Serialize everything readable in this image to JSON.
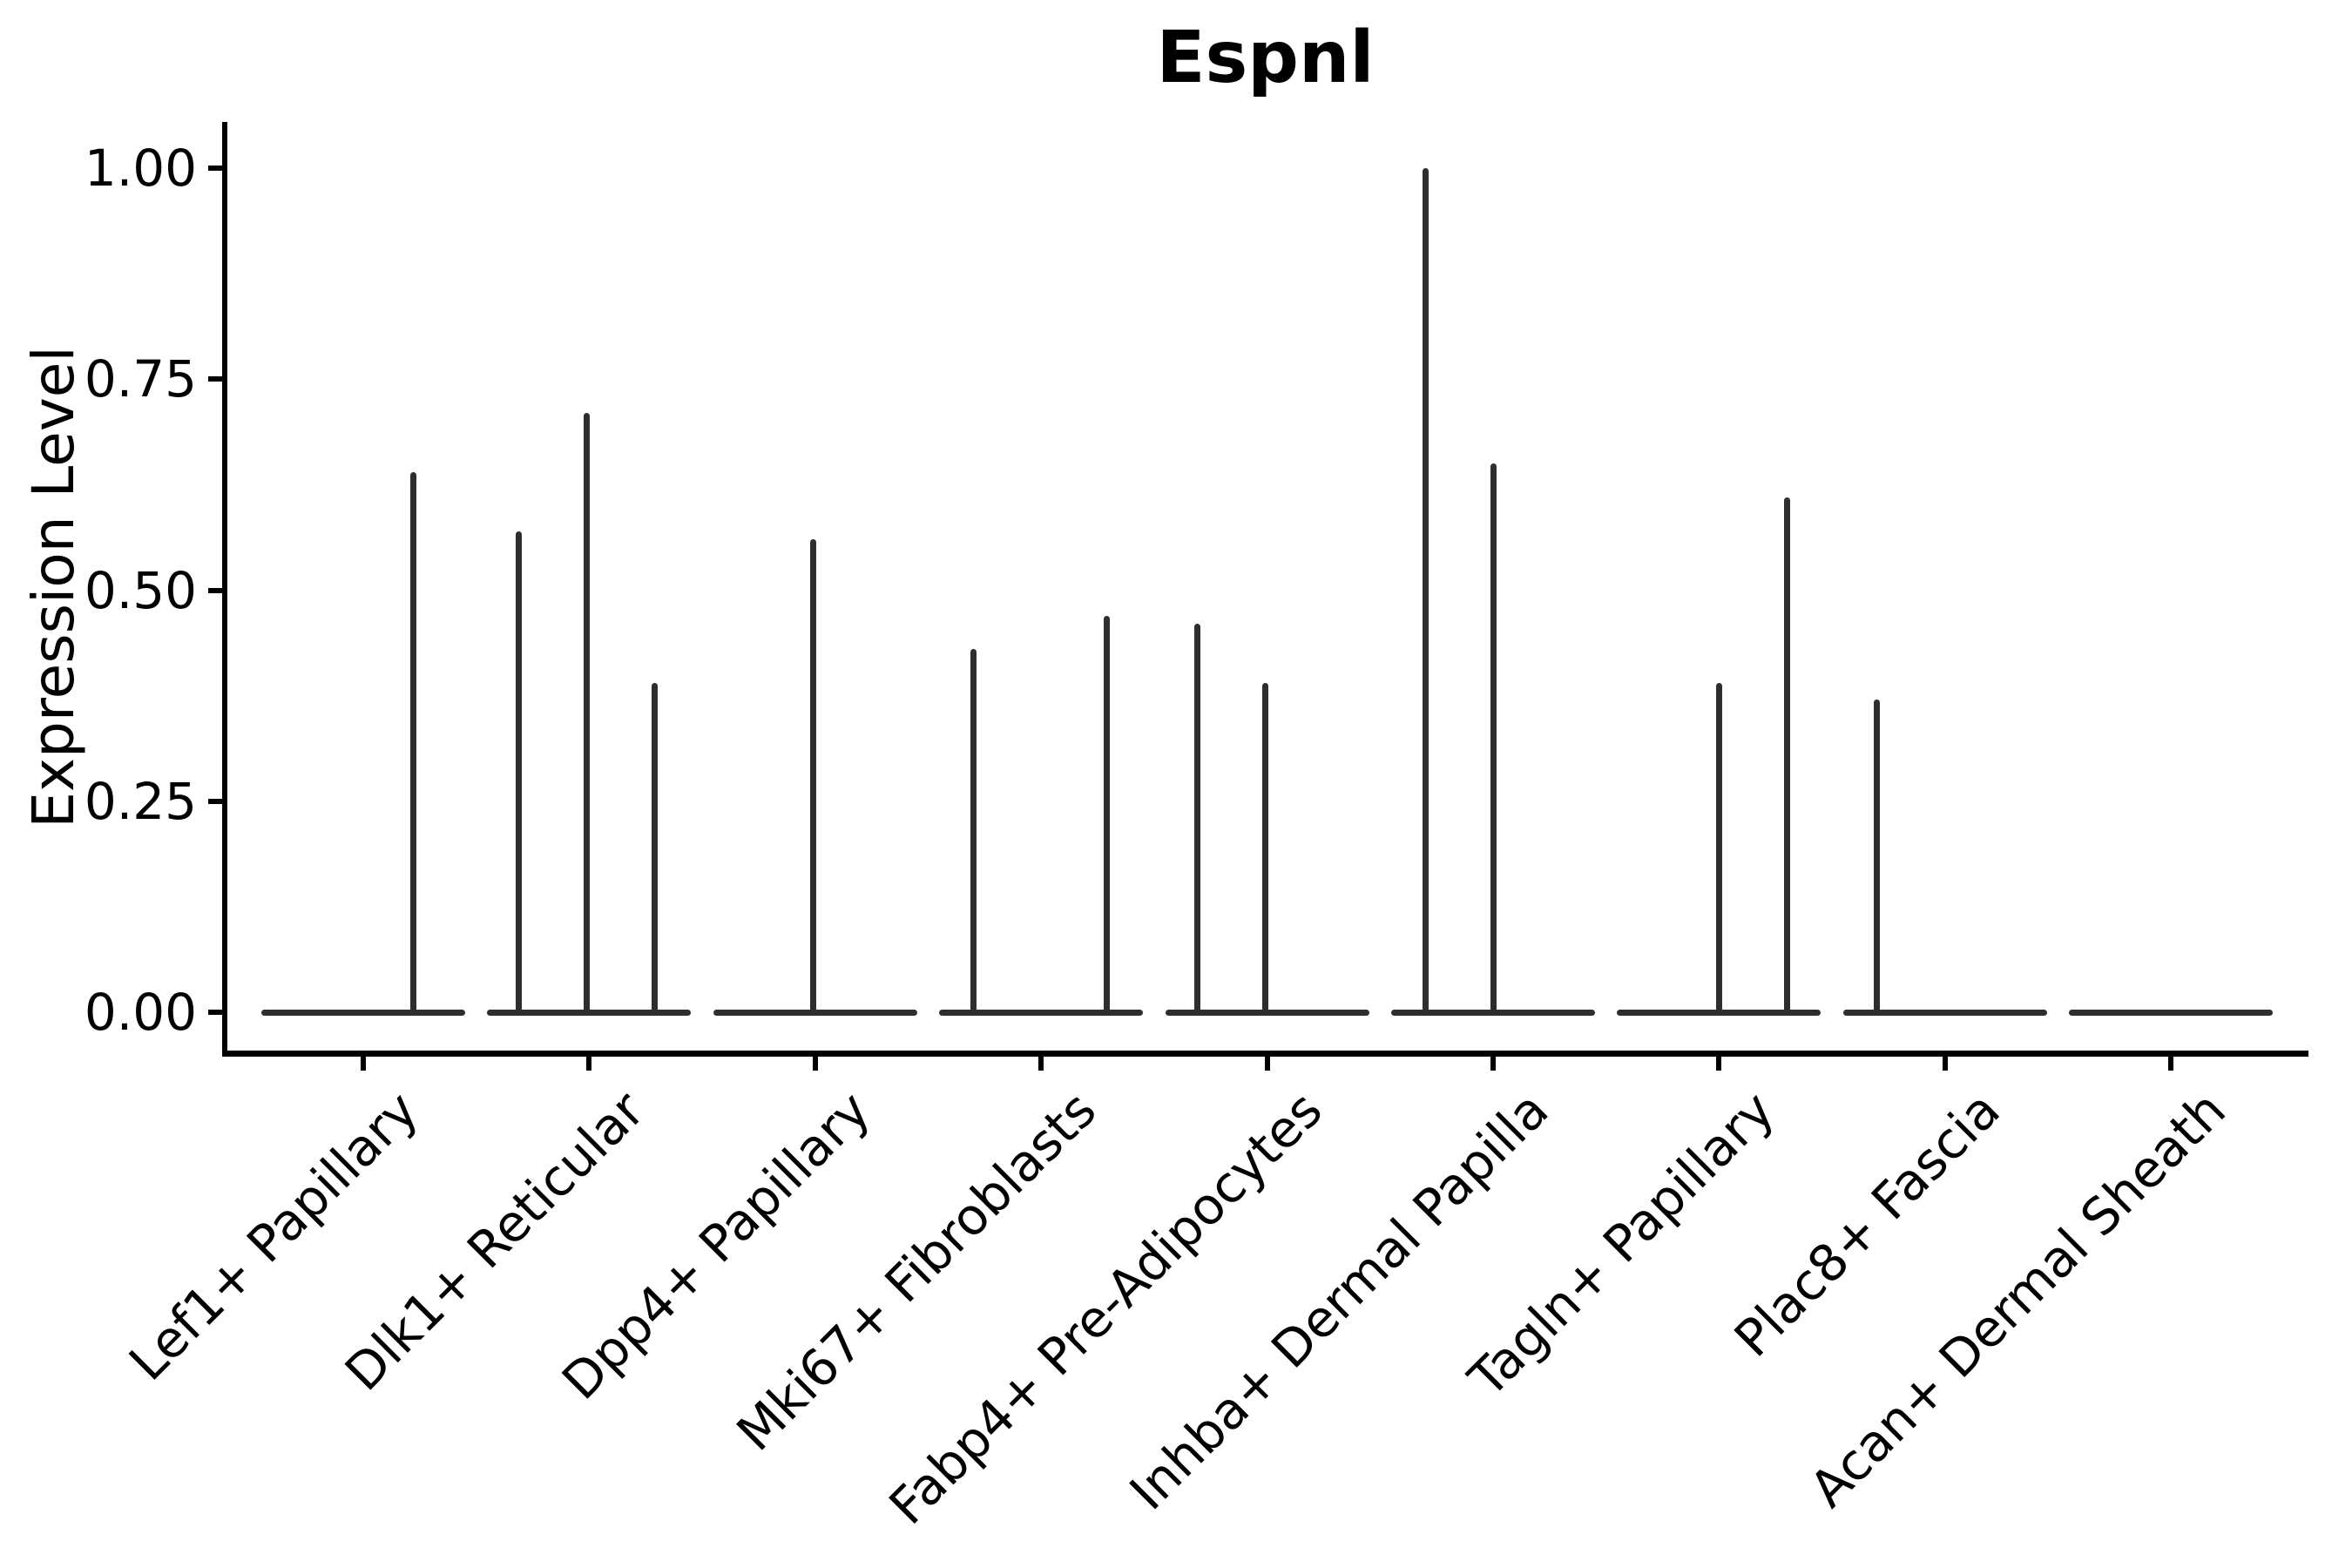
{
  "chart_data": {
    "type": "violin",
    "title": "Espnl",
    "xlabel": "",
    "ylabel": "Expression Level",
    "ylim": [
      0,
      1.05
    ],
    "yticks": [
      1.0,
      0.75,
      0.5,
      0.25,
      0.0
    ],
    "ytick_labels": [
      "1.00",
      "0.75",
      "0.50",
      "0.25",
      "0.00"
    ],
    "categories": [
      "Lef1+ Papillary",
      "Dlk1+ Reticular",
      "Dpp4+ Papillary",
      "Mki67+ Fibroblasts",
      "Fabp4+ Pre-Adipocytes",
      "Inhba+ Dermal Papilla",
      "Tagln+ Papillary",
      "Plac8+ Fascia",
      "Acan+ Dermal Sheath"
    ],
    "xtick_label_rotation_deg": 45,
    "grid": false,
    "legend_position": "none",
    "violin_body_width_fraction": 0.9,
    "violins": [
      {
        "category": "Lef1+ Papillary",
        "baseline_value": 0,
        "spikes": [
          {
            "offset": 0.22,
            "value": 0.64
          }
        ]
      },
      {
        "category": "Dlk1+ Reticular",
        "baseline_value": 0,
        "spikes": [
          {
            "offset": -0.31,
            "value": 0.57
          },
          {
            "offset": -0.01,
            "value": 0.71
          },
          {
            "offset": 0.29,
            "value": 0.39
          }
        ]
      },
      {
        "category": "Dpp4+ Papillary",
        "baseline_value": 0,
        "spikes": [
          {
            "offset": -0.01,
            "value": 0.56
          }
        ]
      },
      {
        "category": "Mki67+ Fibroblasts",
        "baseline_value": 0,
        "spikes": [
          {
            "offset": -0.3,
            "value": 0.43
          },
          {
            "offset": 0.29,
            "value": 0.47
          }
        ]
      },
      {
        "category": "Fabp4+ Pre-Adipocytes",
        "baseline_value": 0,
        "spikes": [
          {
            "offset": -0.31,
            "value": 0.46
          },
          {
            "offset": -0.01,
            "value": 0.39
          }
        ]
      },
      {
        "category": "Inhba+ Dermal Papilla",
        "baseline_value": 0,
        "spikes": [
          {
            "offset": -0.3,
            "value": 1.0
          },
          {
            "offset": 0.0,
            "value": 0.65
          }
        ]
      },
      {
        "category": "Tagln+ Papillary",
        "baseline_value": 0,
        "spikes": [
          {
            "offset": 0.0,
            "value": 0.39
          },
          {
            "offset": 0.3,
            "value": 0.61
          }
        ]
      },
      {
        "category": "Plac8+ Fascia",
        "baseline_value": 0,
        "spikes": [
          {
            "offset": -0.3,
            "value": 0.37
          }
        ]
      },
      {
        "category": "Acan+ Dermal Sheath",
        "baseline_value": 0,
        "spikes": []
      }
    ]
  },
  "colors": {
    "violin_line": "#2e2e2e",
    "axis": "#000000",
    "text": "#000000",
    "background": "#ffffff"
  }
}
